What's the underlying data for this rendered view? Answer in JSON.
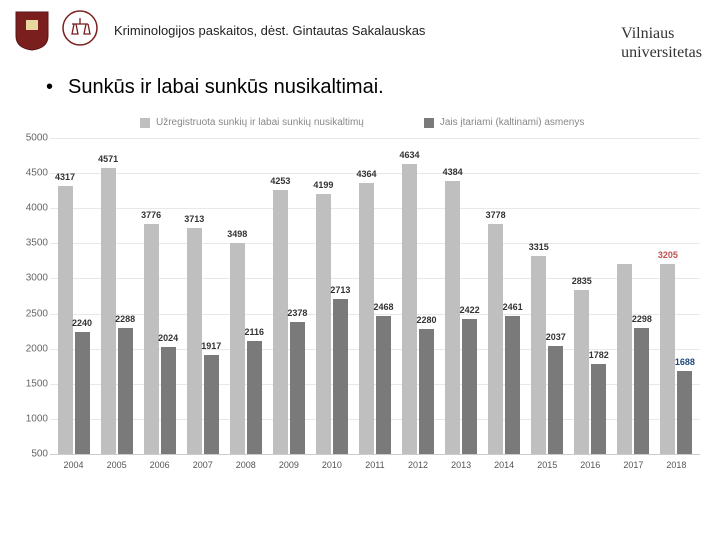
{
  "header": {
    "lecture_text": "Kriminologijos paskaitos, dėst. Gintautas Sakalauskas",
    "university_line1": "Vilniaus",
    "university_line2": "universitetas"
  },
  "title": "Sunkūs ir labai sunkūs nusikaltimai.",
  "legend": {
    "series1": "Užregistruota sunkių ir labai sunkių nusikaltimų",
    "series2": "Jais įtariami (kaltinami) asmenys"
  },
  "chart": {
    "type": "bar",
    "ylim": [
      500,
      5000
    ],
    "ytick_step": 500,
    "grid_color": "#e8e8e8",
    "axis_color": "#cccccc",
    "background_color": "#ffffff",
    "series1_color": "#bfbfbf",
    "series2_color": "#7a7a7a",
    "series1_label_color": "#333333",
    "series2_label_color": "#333333",
    "last_s1_label_color": "#c0504d",
    "last_s2_label_color": "#1f497d",
    "categories": [
      "2004",
      "2005",
      "2006",
      "2007",
      "2008",
      "2009",
      "2010",
      "2011",
      "2012",
      "2013",
      "2014",
      "2015",
      "2016",
      "2017",
      "2018"
    ],
    "series1": [
      4317,
      4571,
      3776,
      3713,
      3498,
      4253,
      4199,
      4364,
      4634,
      4384,
      3778,
      3315,
      2835,
      3205,
      3205
    ],
    "series2": [
      2240,
      2288,
      2024,
      1917,
      2116,
      2378,
      2713,
      2468,
      2280,
      2422,
      2461,
      2037,
      1782,
      2298,
      1688
    ],
    "series1_labels": [
      "4317",
      "4571",
      "3776",
      "3713",
      "3498",
      "4253",
      "4199",
      "4364",
      "4634",
      "4384",
      "3778",
      "3315",
      "2835",
      "",
      "3205"
    ],
    "series2_labels": [
      "2240",
      "2288",
      "2024",
      "1917",
      "2116",
      "2378",
      "2713",
      "2468",
      "2280",
      "2422",
      "2461",
      "2037",
      "1782",
      "2298",
      "1688"
    ]
  }
}
